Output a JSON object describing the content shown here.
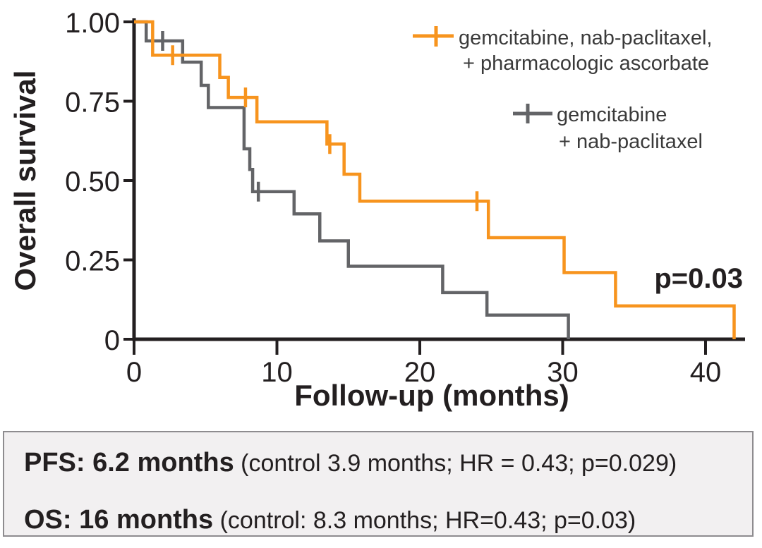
{
  "colors": {
    "treatment": "#F7941E",
    "control": "#636467",
    "axis": "#231F20",
    "box_bg": "#F2F0F1",
    "box_border": "#8E8C8F"
  },
  "legend": {
    "series1_line1": "gemcitabine, nab-paclitaxel,",
    "series1_line2": "+ pharmacologic ascorbate",
    "series2_line1": "gemcitabine",
    "series2_line2": "+ nab-paclitaxel"
  },
  "stats_box": {
    "line1_bold": "PFS: 6.2 months",
    "line1_rest": " (control 3.9 months; HR = 0.43; p=0.029)",
    "line2_bold": "OS: 16 months",
    "line2_rest": "  (control: 8.3 months; HR=0.43; p=0.03)"
  },
  "chart_data": {
    "type": "line",
    "subtype": "kaplan-meier-step-curve",
    "title": "",
    "xlabel": "Follow-up (months)",
    "ylabel": "Overall survival",
    "annotation": "p=0.03",
    "xlim": [
      0,
      43
    ],
    "ylim": [
      0,
      1.0
    ],
    "grid": false,
    "legend_position": "top-right",
    "x_ticks": [
      {
        "value": 0,
        "label": "0"
      },
      {
        "value": 10,
        "label": "10"
      },
      {
        "value": 20,
        "label": "20"
      },
      {
        "value": 30,
        "label": "30"
      },
      {
        "value": 40,
        "label": "40"
      }
    ],
    "y_ticks": [
      {
        "value": 1.0,
        "label": "1.00"
      },
      {
        "value": 0.75,
        "label": "0.75"
      },
      {
        "value": 0.5,
        "label": "0.50"
      },
      {
        "value": 0.25,
        "label": "0.25"
      },
      {
        "value": 0.0,
        "label": "0"
      }
    ],
    "series": [
      {
        "name": "gemcitabine, nab-paclitaxel, + pharmacologic ascorbate",
        "color": "#F7941E",
        "steps": [
          [
            0,
            1.0
          ],
          [
            1.3,
            0.895
          ],
          [
            6.0,
            0.825
          ],
          [
            6.6,
            0.762
          ],
          [
            8.6,
            0.685
          ],
          [
            13.5,
            0.615
          ],
          [
            14.7,
            0.52
          ],
          [
            15.8,
            0.435
          ],
          [
            24.8,
            0.32
          ],
          [
            30.1,
            0.21
          ],
          [
            33.7,
            0.105
          ],
          [
            42.0,
            0.0
          ]
        ],
        "censor_marks": [
          [
            2.7,
            0.895
          ],
          [
            7.8,
            0.762
          ],
          [
            13.7,
            0.615
          ],
          [
            24.0,
            0.435
          ]
        ]
      },
      {
        "name": "gemcitabine + nab-paclitaxel",
        "color": "#636467",
        "steps": [
          [
            0,
            1.0
          ],
          [
            0.85,
            0.94
          ],
          [
            3.4,
            0.873
          ],
          [
            4.7,
            0.8
          ],
          [
            5.2,
            0.73
          ],
          [
            7.7,
            0.6
          ],
          [
            8.1,
            0.535
          ],
          [
            8.3,
            0.465
          ],
          [
            11.2,
            0.395
          ],
          [
            13.0,
            0.31
          ],
          [
            15.0,
            0.23
          ],
          [
            21.6,
            0.147
          ],
          [
            24.7,
            0.076
          ],
          [
            30.4,
            0.0
          ]
        ],
        "censor_marks": [
          [
            2.0,
            0.94
          ],
          [
            8.7,
            0.465
          ]
        ]
      }
    ]
  }
}
